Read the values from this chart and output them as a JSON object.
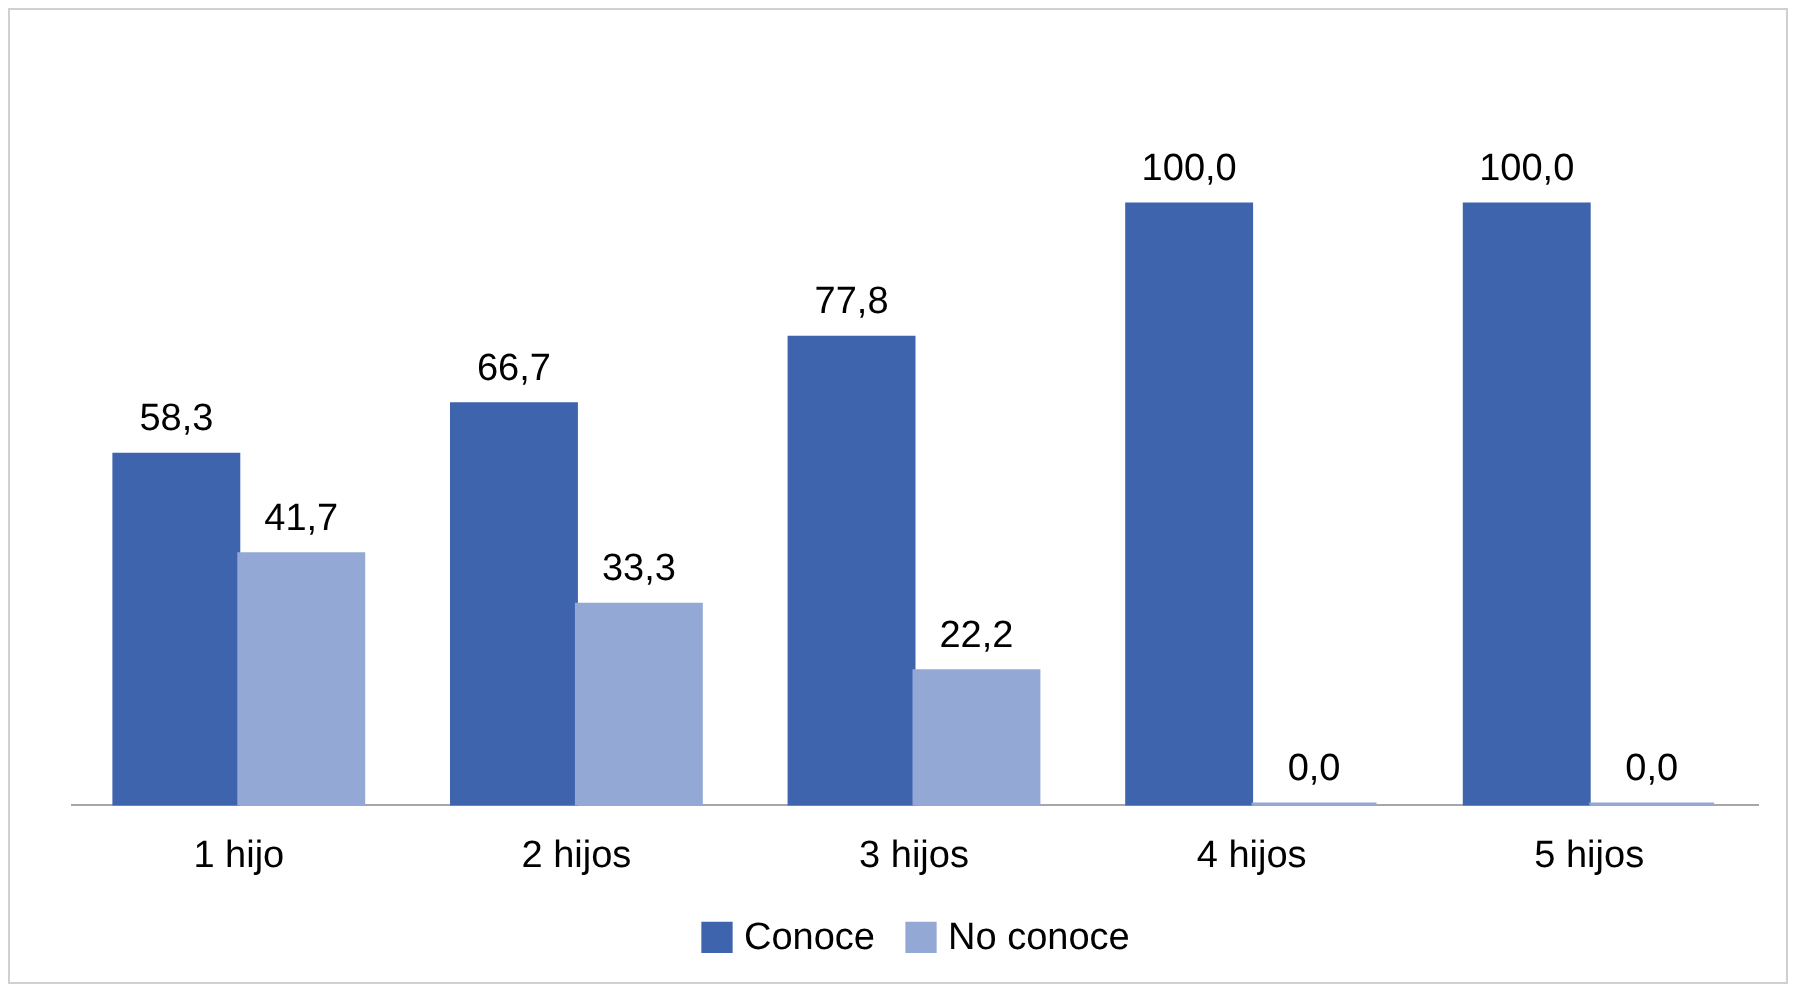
{
  "chart_data": {
    "type": "bar",
    "categories": [
      "1 hijo",
      "2 hijos",
      "3 hijos",
      "4 hijos",
      "5 hijos"
    ],
    "series": [
      {
        "name": "Conoce",
        "color": "#3f64ae",
        "values": [
          58.3,
          66.7,
          77.8,
          100.0,
          100.0
        ],
        "value_labels": [
          "58,3",
          "66,7",
          "77,8",
          "100,0",
          "100,0"
        ]
      },
      {
        "name": "No conoce",
        "color": "#94a8d6",
        "values": [
          41.7,
          33.3,
          22.2,
          0.0,
          0.0
        ],
        "value_labels": [
          "41,7",
          "33,3",
          "22,2",
          "0,0",
          "0,0"
        ]
      }
    ],
    "legend": "bottom"
  }
}
